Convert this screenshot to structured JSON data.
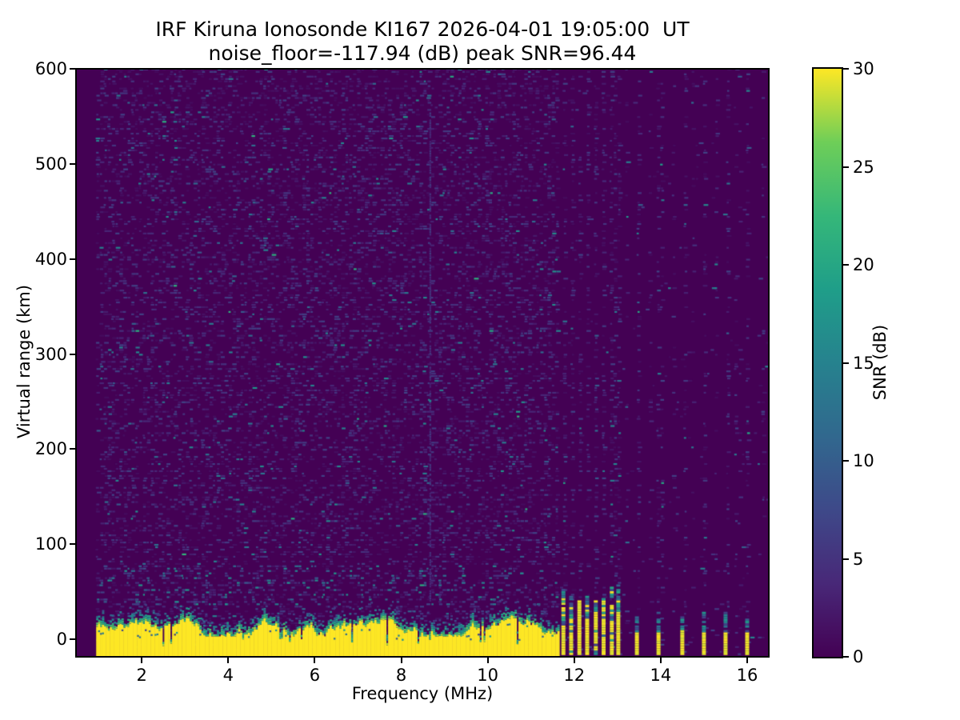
{
  "chart_data": {
    "type": "heatmap",
    "title": "IRF Kiruna Ionosonde KI167 2026-04-01 19:05:00  UT",
    "subtitle": "noise_floor=-117.94 (dB) peak SNR=96.44",
    "noise_floor_db": -117.94,
    "peak_snr_db": 96.44,
    "xlabel": "Frequency (MHz)",
    "ylabel": "Virtual range (km)",
    "xlim": [
      0.48,
      16.5
    ],
    "ylim": [
      -18.5,
      600
    ],
    "xticks": [
      2,
      4,
      6,
      8,
      10,
      12,
      14,
      16
    ],
    "yticks": [
      0,
      100,
      200,
      300,
      400,
      500,
      600
    ],
    "grid": false,
    "colorbar": {
      "label": "SNR (dB)",
      "min": 0,
      "max": 30,
      "ticks": [
        0,
        5,
        10,
        15,
        20,
        25,
        30
      ],
      "colormap": "viridis",
      "position": "right"
    },
    "colormap_anchors": [
      "#440154",
      "#482878",
      "#3e4989",
      "#31688e",
      "#26828e",
      "#1f9e89",
      "#35b779",
      "#6ece58",
      "#fde725"
    ],
    "background_value_color": "#440154",
    "features": {
      "seed": 42,
      "data_fmin": 0.95,
      "data_fmax": 16.45,
      "noise": {
        "density": 0.3,
        "cell_mhz": 0.09,
        "cell_km": 2.5,
        "off_band_density": 0.012,
        "stripe_tall_density": 0.3,
        "stripe_short_density": 0.22,
        "stripe_faint_density": 0.09,
        "lowband_boost": {
          "r_min": 34,
          "r_max": 78,
          "extra_density": 0.1
        }
      },
      "ground_band": {
        "fmin": 0.95,
        "fmax": 11.62,
        "col_mhz": 0.045,
        "top_km_base": 14,
        "top_km_min": 3,
        "top_km_max": 28,
        "walk_step_km": 9,
        "notch_prob": 0.055,
        "fringe_km": 22
      },
      "rfi_streak": {
        "freq": 8.67,
        "r_min": 40,
        "r_max": 555,
        "bright_r": 250
      },
      "stripes_tall_mhz": [
        11.75,
        11.93,
        12.12,
        12.3,
        12.5,
        12.68,
        12.87,
        13.02
      ],
      "stripes_short_mhz": [
        13.45,
        13.95,
        14.5,
        15.0,
        15.5,
        16.0
      ],
      "stripes_faint_mhz": [
        13.2,
        13.7,
        14.25,
        14.75,
        15.25,
        15.75,
        16.3
      ]
    }
  }
}
